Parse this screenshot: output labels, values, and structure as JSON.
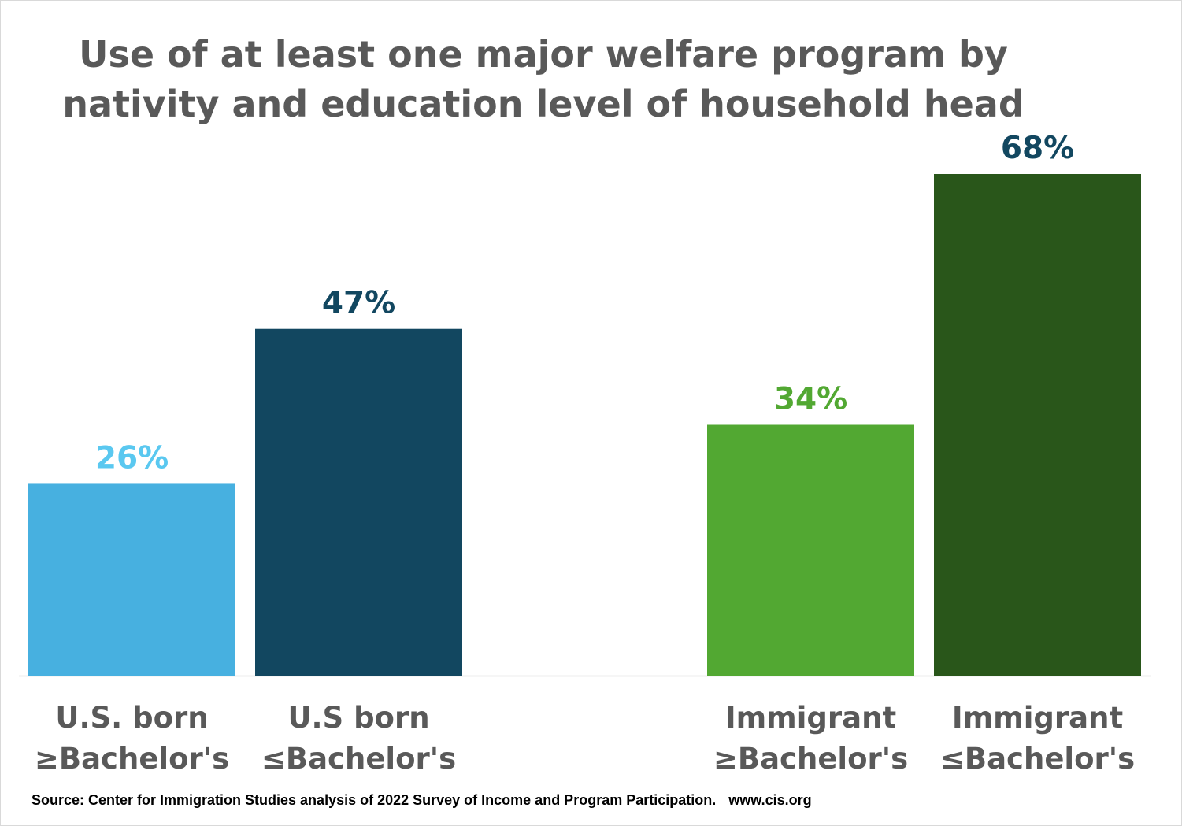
{
  "title_lines": [
    "Use of at least one major welfare program by",
    "nativity and education level of household head"
  ],
  "source": "Source: Center for Immigration Studies analysis of 2022 Survey of Income and Program Participation.",
  "website": "www.cis.org",
  "chart_data": {
    "type": "bar",
    "title": "Use of at least one major welfare program by nativity and education level of household head",
    "categories": [
      [
        "U.S. born",
        "≥Bachelor's"
      ],
      [
        "U.S born",
        "≤Bachelor's"
      ],
      [
        "Immigrant",
        "≥Bachelor's"
      ],
      [
        "Immigrant",
        "≤Bachelor's"
      ]
    ],
    "values": [
      26,
      47,
      34,
      68
    ],
    "value_labels": [
      "26%",
      "47%",
      "34%",
      "68%"
    ],
    "bar_colors": [
      "#47b0e0",
      "#124760",
      "#52a832",
      "#29561a"
    ],
    "label_colors": [
      "#5ac8f0",
      "#124760",
      "#52a832",
      "#124760"
    ],
    "ylim": [
      0,
      68
    ],
    "grid": false,
    "axis_color": "#d9d9d9",
    "category_label_color": "#595959"
  }
}
